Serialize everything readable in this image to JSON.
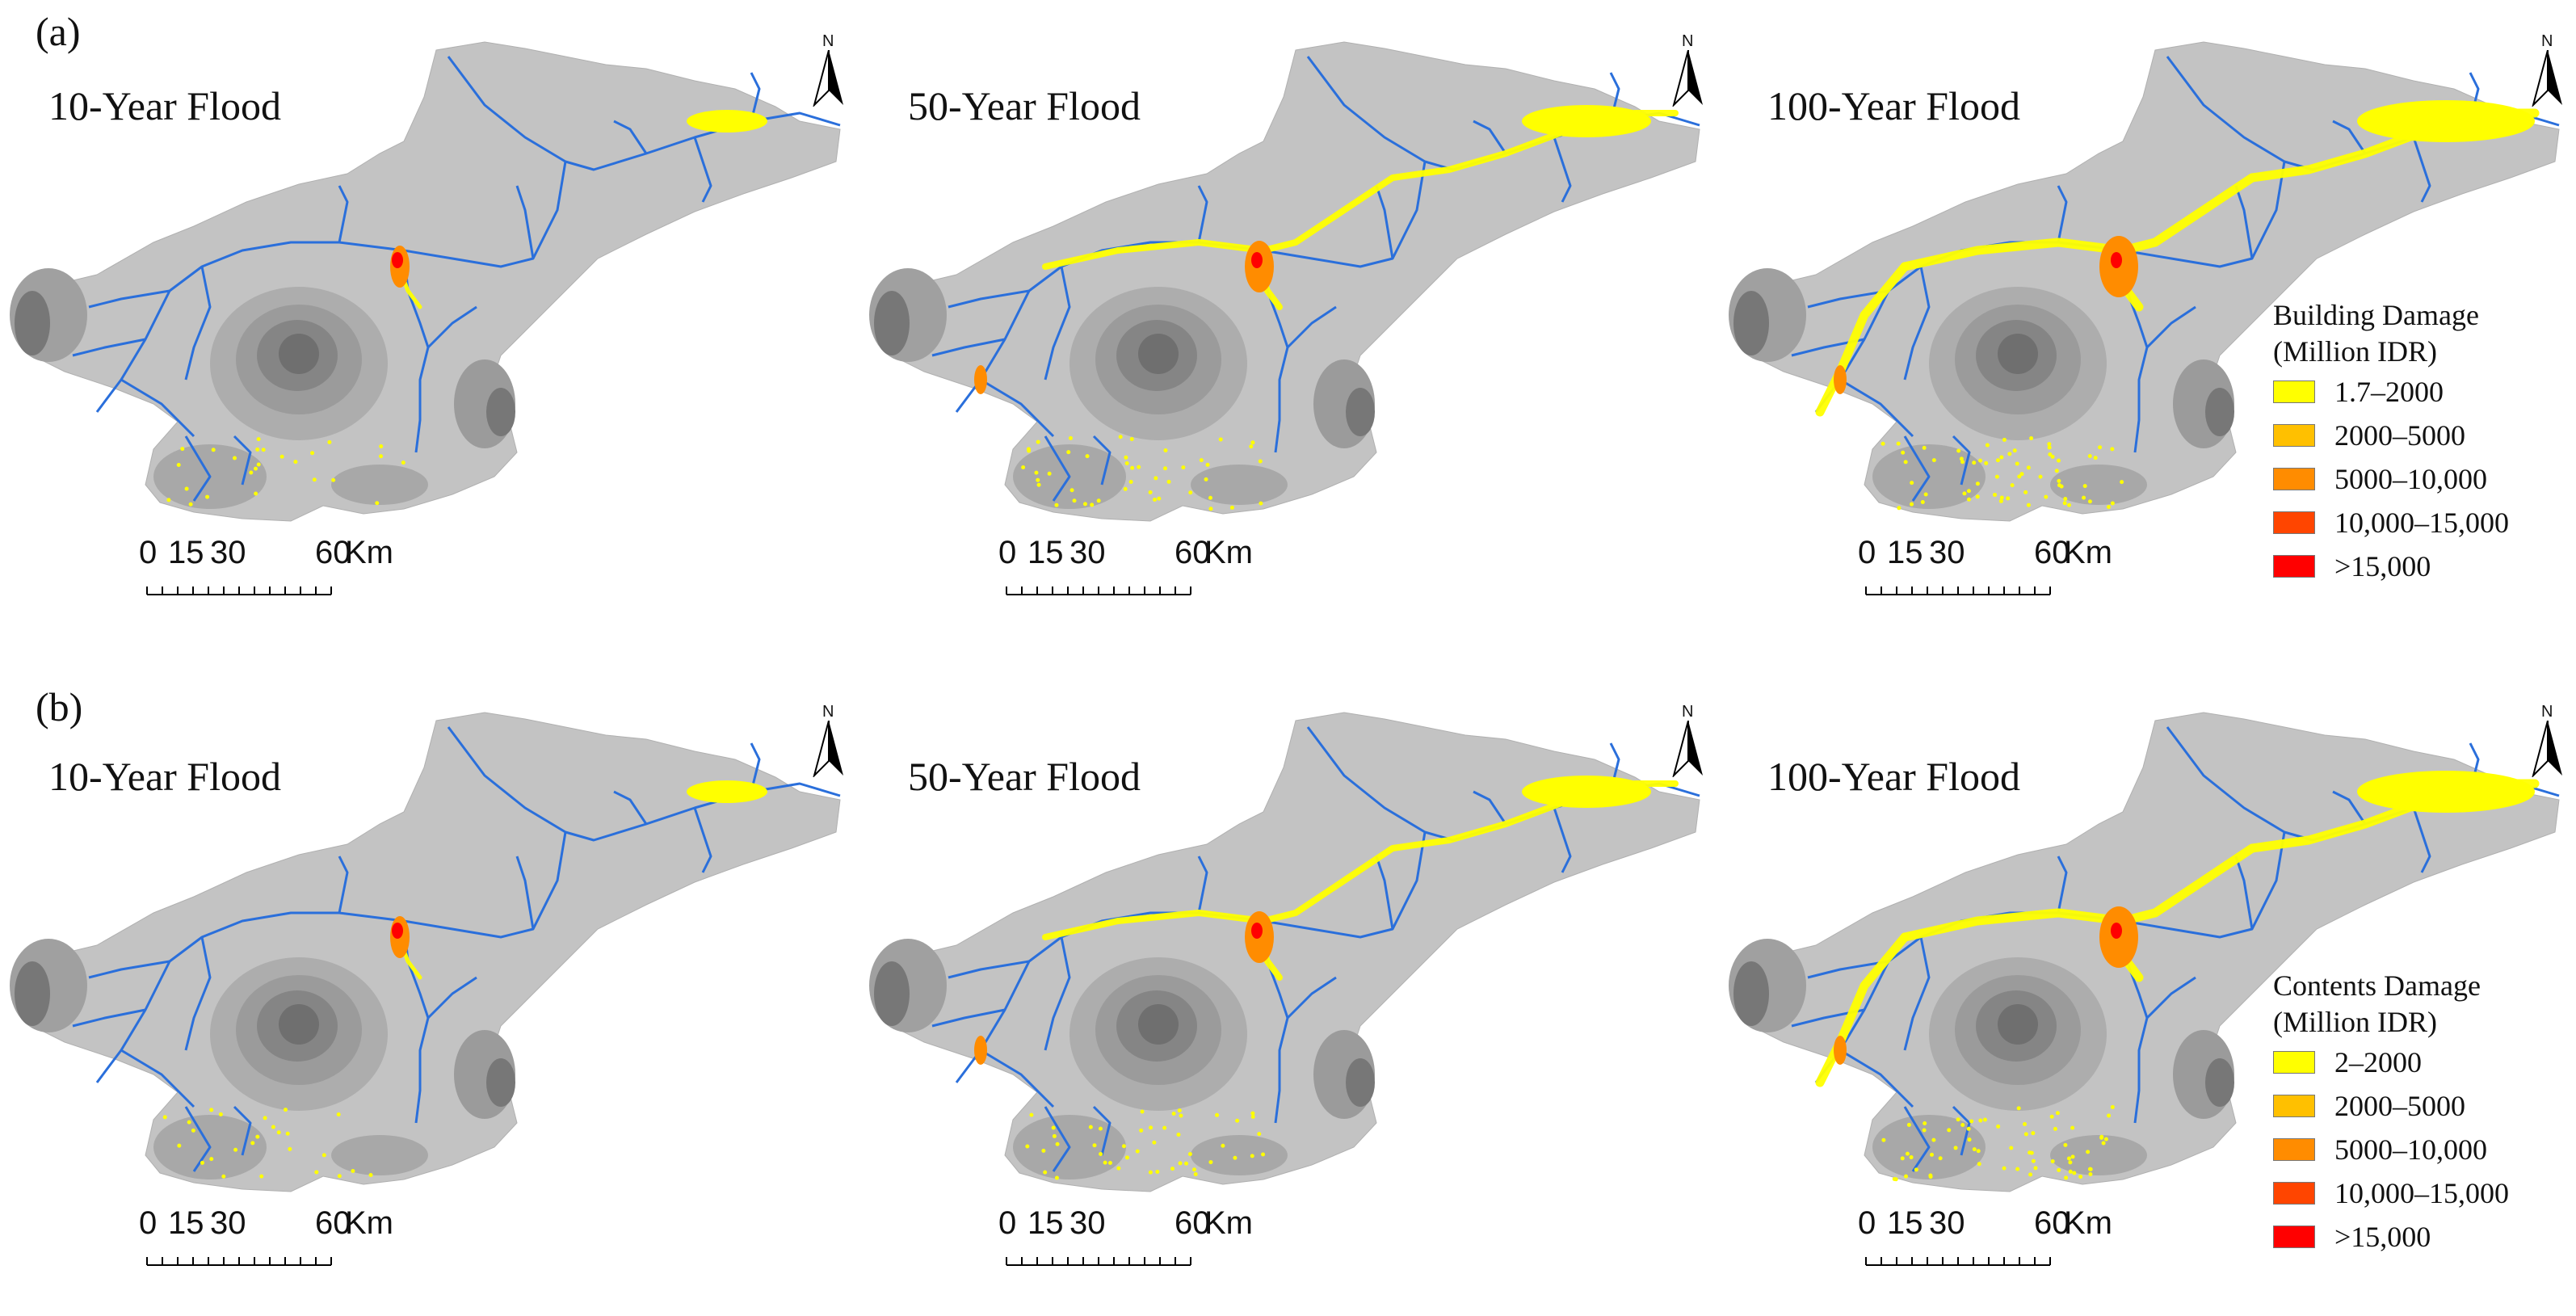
{
  "rows": [
    {
      "label": "(a)",
      "panels": [
        "10-Year Flood",
        "50-Year Flood",
        "100-Year Flood"
      ],
      "legend": {
        "title_line1": "Building Damage",
        "title_line2": "(Million IDR)",
        "items": [
          {
            "label": "1.7–2000",
            "color": "#ffff00"
          },
          {
            "label": "2000–5000",
            "color": "#ffc000"
          },
          {
            "label": "5000–10,000",
            "color": "#ff8c00"
          },
          {
            "label": "10,000–15,000",
            "color": "#ff4500"
          },
          {
            "label": ">15,000",
            "color": "#ff0000"
          }
        ]
      }
    },
    {
      "label": "(b)",
      "panels": [
        "10-Year Flood",
        "50-Year Flood",
        "100-Year Flood"
      ],
      "legend": {
        "title_line1": "Contents Damage",
        "title_line2": "(Million IDR)",
        "items": [
          {
            "label": "2–2000",
            "color": "#ffff00"
          },
          {
            "label": "2000–5000",
            "color": "#ffc000"
          },
          {
            "label": "5000–10,000",
            "color": "#ff8c00"
          },
          {
            "label": "10,000–15,000",
            "color": "#ff4500"
          },
          {
            "label": ">15,000",
            "color": "#ff0000"
          }
        ]
      }
    }
  ],
  "scale_bar": {
    "ticks": [
      "0",
      "15",
      "30",
      "60"
    ],
    "unit": "Km"
  },
  "north_label": "N",
  "colors": {
    "catchment": "#c3c3c3",
    "river": "#2a6fdb",
    "damage_low": "#ffff00",
    "damage_high": "#ff0000"
  }
}
